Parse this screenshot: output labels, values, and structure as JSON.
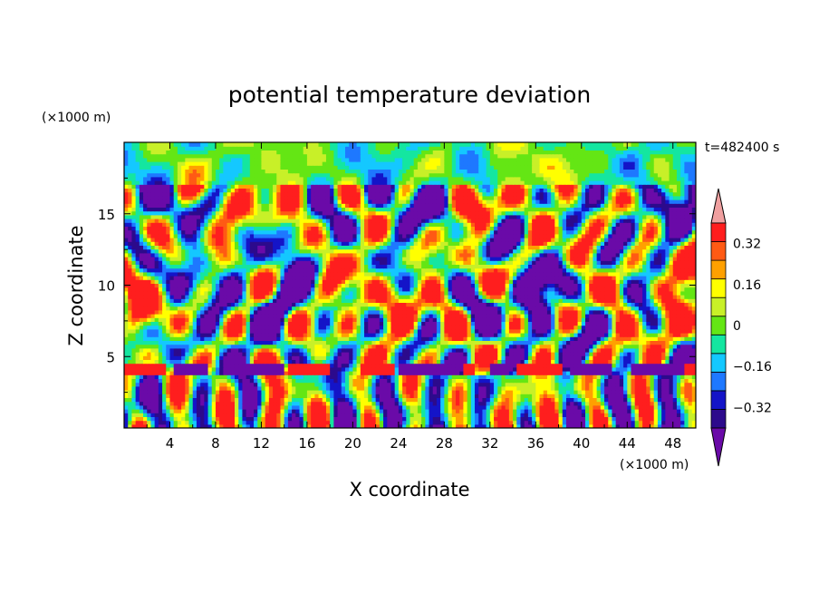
{
  "chart_data": {
    "type": "heatmap",
    "title": "potential temperature deviation",
    "xlabel": "X coordinate",
    "ylabel": "Z coordinate",
    "x_unit": "(×1000 m)",
    "y_unit": "(×1000 m)",
    "time_label": "t=482400 s",
    "xlim": [
      0,
      50
    ],
    "ylim": [
      0,
      20
    ],
    "x_ticks": [
      "4",
      "8",
      "12",
      "16",
      "20",
      "24",
      "28",
      "32",
      "36",
      "40",
      "44",
      "48"
    ],
    "x_tick_values": [
      4,
      8,
      12,
      16,
      20,
      24,
      28,
      32,
      36,
      40,
      44,
      48
    ],
    "y_ticks": [
      "5",
      "10",
      "15"
    ],
    "y_tick_values": [
      5,
      10,
      15
    ],
    "colorbar": {
      "levels": [
        -0.4,
        -0.32,
        -0.24,
        -0.16,
        -0.08,
        0,
        0.08,
        0.16,
        0.24,
        0.32,
        0.4
      ],
      "labels": [
        "0.32",
        "0.16",
        "0",
        "−0.16",
        "−0.32"
      ],
      "label_values": [
        0.32,
        0.16,
        0,
        -0.16,
        -0.32
      ],
      "colors": [
        "#6a0aa8",
        "#2c0a8c",
        "#1414c8",
        "#1e78ff",
        "#14c8ff",
        "#14e6a0",
        "#64e614",
        "#c8f028",
        "#ffff00",
        "#ffa000",
        "#ff5a14",
        "#ff1e1e",
        "#f0a0a0"
      ]
    }
  }
}
